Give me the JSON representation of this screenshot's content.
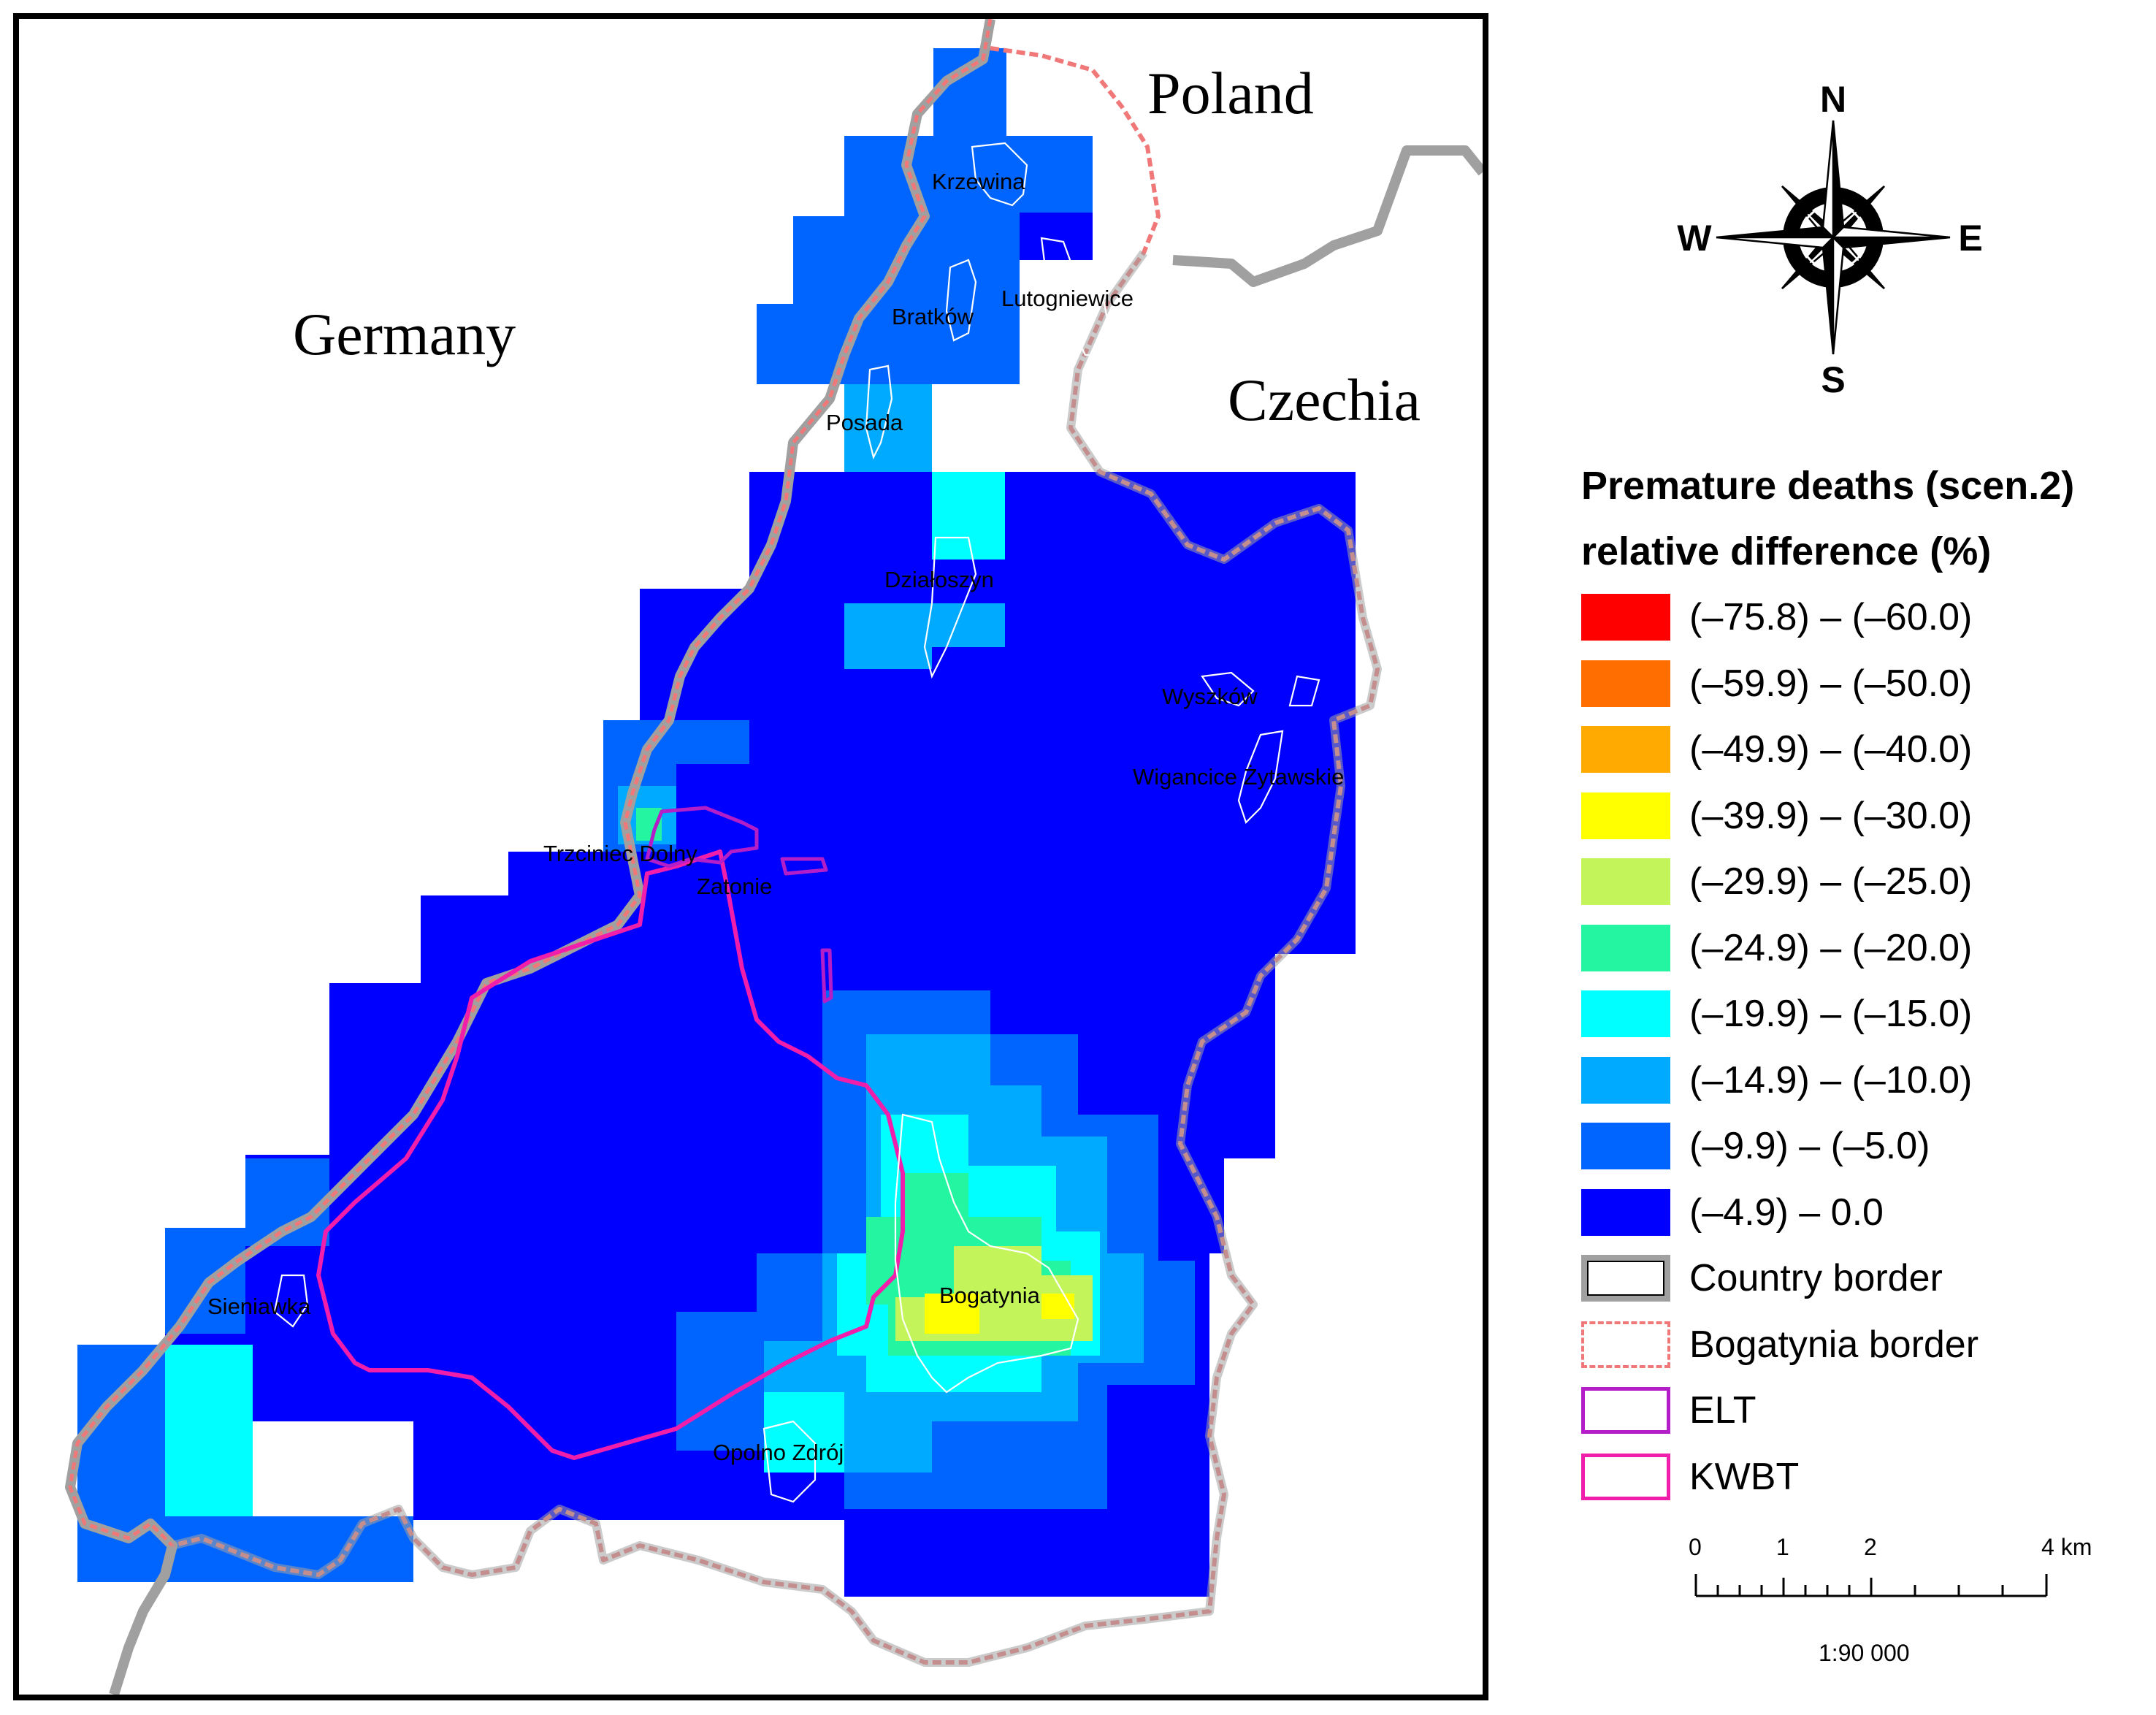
{
  "map": {
    "countries": {
      "poland": "Poland",
      "germany": "Germany",
      "czechia": "Czechia"
    },
    "places": {
      "krzewina": "Krzewina",
      "bratkow": "Bratków",
      "lutogniewice": "Lutogniewice",
      "posada": "Posada",
      "dzialoszyn": "Działoszyn",
      "wyszkow": "Wyszków",
      "wigancice": "Wigancice Żytawskie",
      "trzciniec": "Trzciniec Dolny",
      "zatonie": "Zatonie",
      "sieniawka": "Sieniawka",
      "bogatynia": "Bogatynia",
      "opolno": "Opolno Zdrój"
    }
  },
  "compass": {
    "n": "N",
    "s": "S",
    "e": "E",
    "w": "W"
  },
  "legend": {
    "title_line1": "Premature deaths (scen.2)",
    "title_line2": "relative difference (%)",
    "classes": [
      {
        "label": "(–75.8) – (–60.0)",
        "color": "#ff0000"
      },
      {
        "label": "(–59.9) – (–50.0)",
        "color": "#ff6e00"
      },
      {
        "label": "(–49.9) – (–40.0)",
        "color": "#ffaa00"
      },
      {
        "label": "(–39.9) – (–30.0)",
        "color": "#ffff00"
      },
      {
        "label": "(–29.9) – (–25.0)",
        "color": "#c3f55a"
      },
      {
        "label": "(–24.9) – (–20.0)",
        "color": "#23f5a0"
      },
      {
        "label": "(–19.9) – (–15.0)",
        "color": "#00ffff"
      },
      {
        "label": "(–14.9) – (–10.0)",
        "color": "#00aaff"
      },
      {
        "label": "(–9.9) – (–5.0)",
        "color": "#0064ff"
      },
      {
        "label": "(–4.9) – 0.0",
        "color": "#0000ff"
      }
    ],
    "lines": {
      "country": "Country border",
      "bogatynia": "Bogatynia border",
      "elt": "ELT",
      "kwbt": "KWBT"
    },
    "line_colors": {
      "country": "#a0a0a0",
      "bogatynia": "#f07878",
      "elt": "#b41ec8",
      "kwbt": "#f01eaa"
    }
  },
  "scale": {
    "t0": "0",
    "t1": "1",
    "t2": "2",
    "t4": "4 km",
    "ratio": "1:90 000"
  }
}
